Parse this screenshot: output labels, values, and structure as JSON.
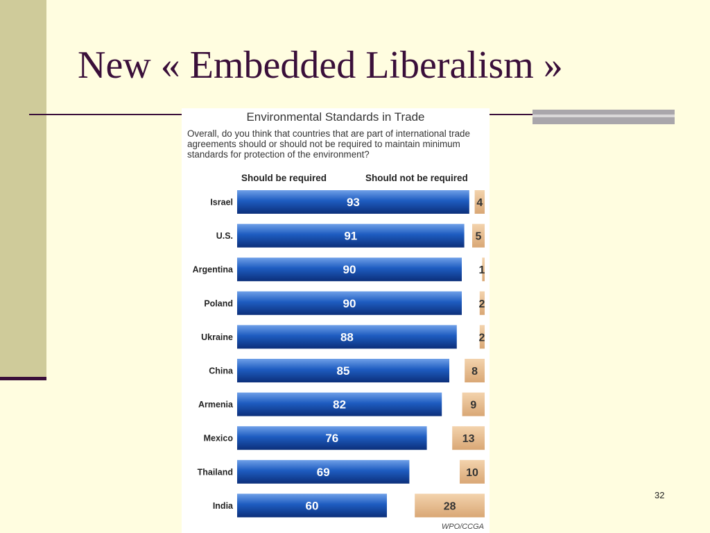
{
  "slide": {
    "title": "New « Embedded Liberalism »",
    "page_number": "32"
  },
  "colors": {
    "background": "#fffde0",
    "accent": "#3a0f3a",
    "band": "#cfcb9a",
    "required_bar": "#1f5fbf",
    "not_required_bar": "#e3b787"
  },
  "chart_data": {
    "type": "bar",
    "title": "Environmental Standards in Trade",
    "subtitle": "Overall, do you think that countries that are part of international trade agreements should or should not be required to maintain minimum standards for protection of the environment?",
    "categories": [
      "Israel",
      "U.S.",
      "Argentina",
      "Poland",
      "Ukraine",
      "China",
      "Armenia",
      "Mexico",
      "Thailand",
      "India"
    ],
    "series": [
      {
        "name": "Should be required",
        "values": [
          93,
          91,
          90,
          90,
          88,
          85,
          82,
          76,
          69,
          60
        ]
      },
      {
        "name": "Should not be required",
        "values": [
          4,
          5,
          1,
          2,
          2,
          8,
          9,
          13,
          10,
          28
        ]
      }
    ],
    "source": "WPO/CCGA"
  }
}
